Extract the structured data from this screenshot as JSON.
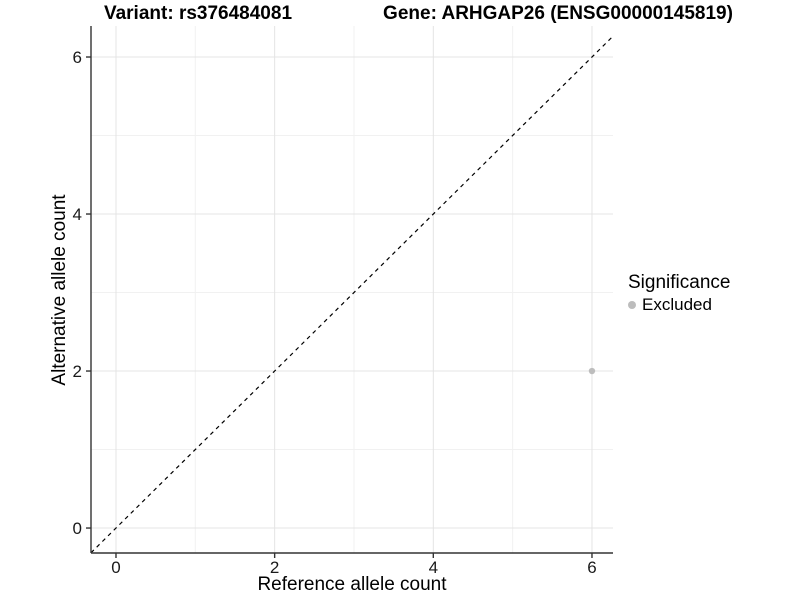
{
  "titles": {
    "left": "Variant: rs376484081",
    "right": "Gene: ARHGAP26 (ENSG00000145819)"
  },
  "chart_data": {
    "type": "scatter",
    "title_left": "Variant: rs376484081",
    "title_right": "Gene: ARHGAP26 (ENSG00000145819)",
    "xlabel": "Reference allele count",
    "ylabel": "Alternative allele count",
    "xlim": [
      -0.315,
      6.265
    ],
    "ylim": [
      -0.318,
      6.395
    ],
    "xticks": [
      0,
      2,
      4,
      6
    ],
    "yticks": [
      0,
      2,
      4,
      6
    ],
    "minor_xticks": [
      1,
      3,
      5
    ],
    "minor_yticks": [
      1,
      3,
      5
    ],
    "grid": true,
    "identity_line": {
      "slope": 1,
      "intercept": 0,
      "style": "dashed",
      "color": "#000000"
    },
    "series": [
      {
        "name": "Excluded",
        "color": "#bdbdbd",
        "points": [
          {
            "x": 6,
            "y": 2
          }
        ]
      }
    ],
    "legend": {
      "title": "Significance",
      "position": "right",
      "items": [
        {
          "label": "Excluded",
          "color": "#bdbdbd"
        }
      ]
    },
    "colors": {
      "background": "#ffffff",
      "grid_major": "#e4e4e4",
      "grid_minor": "#f1f1f1",
      "axis_line": "#333333",
      "tick_mark": "#333333",
      "tick_text": "#1a1a1a"
    }
  }
}
